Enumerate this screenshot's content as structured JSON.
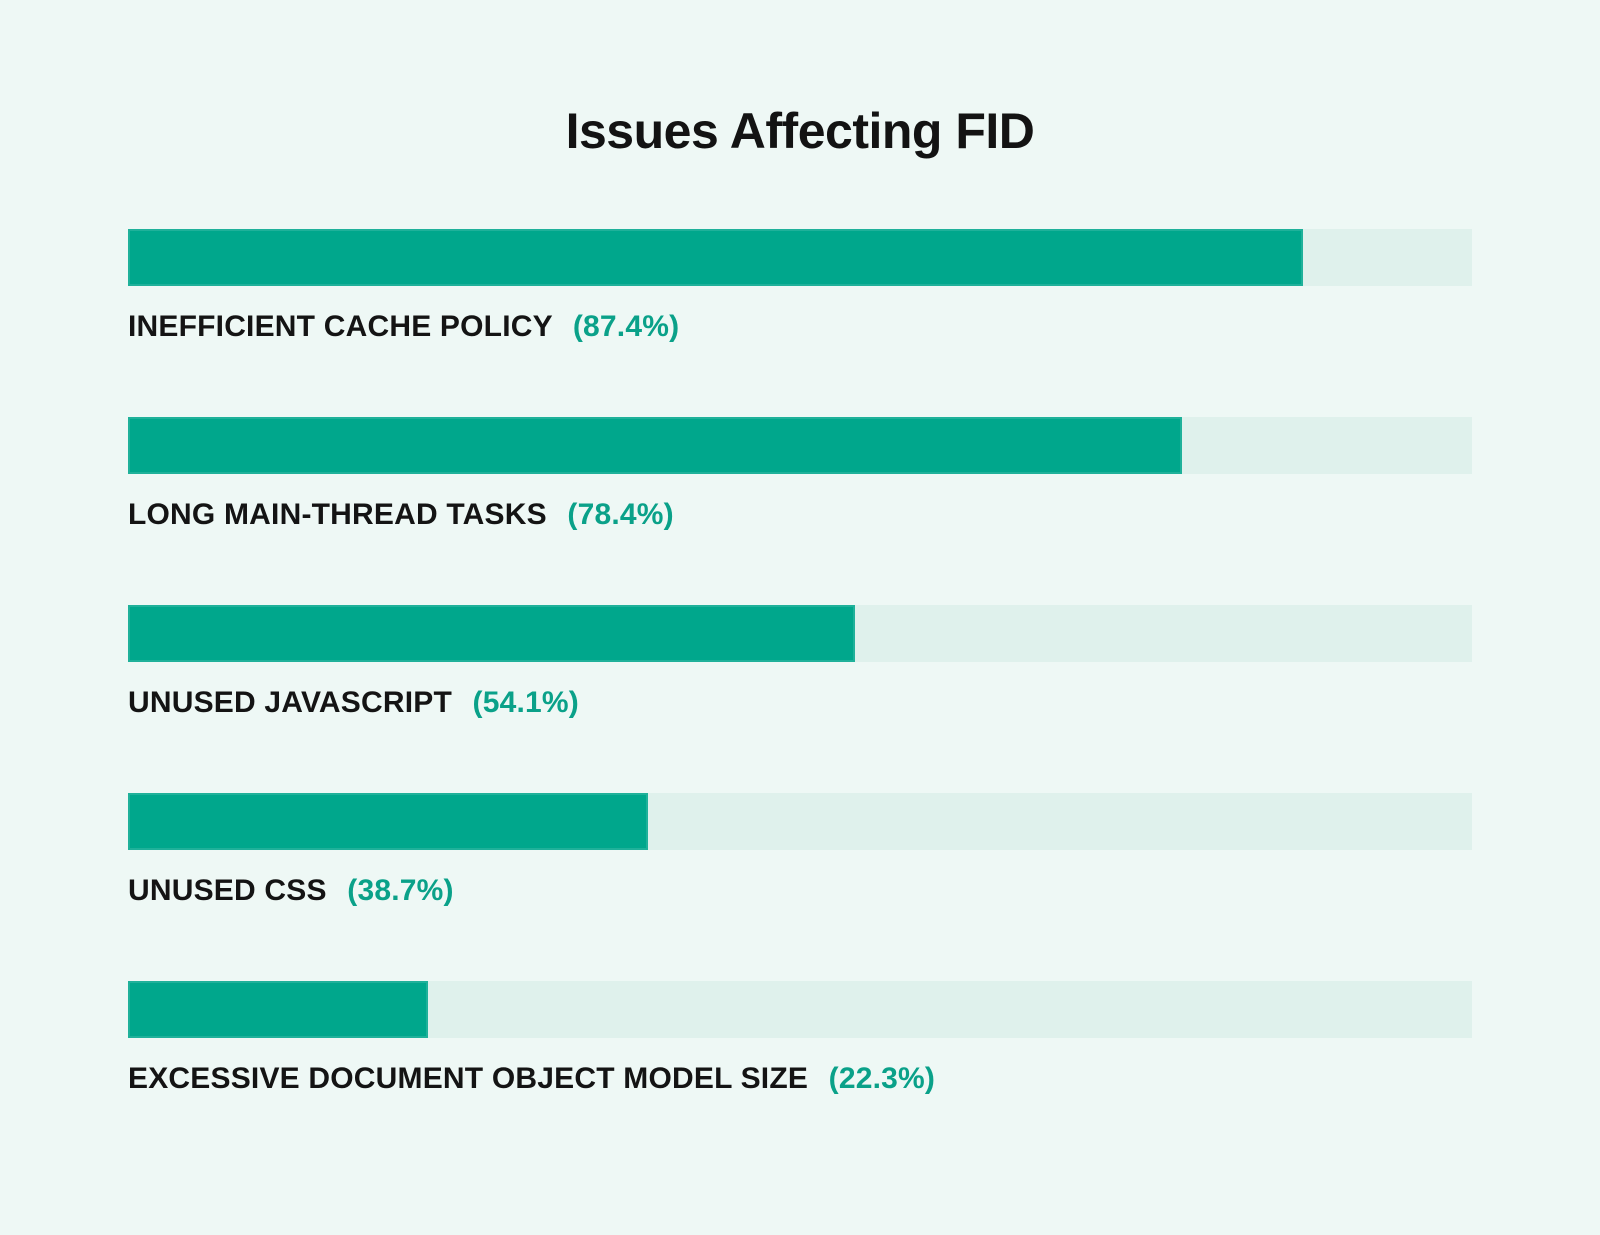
{
  "chart_data": {
    "type": "bar",
    "orientation": "horizontal",
    "title": "Issues Affecting FID",
    "categories": [
      "INEFFICIENT CACHE POLICY",
      "LONG MAIN-THREAD TASKS",
      "UNUSED JAVASCRIPT",
      "UNUSED CSS",
      "EXCESSIVE DOCUMENT OBJECT MODEL SIZE"
    ],
    "values": [
      87.4,
      78.4,
      54.1,
      38.7,
      22.3
    ],
    "value_labels": [
      "(87.4%)",
      "(78.4%)",
      "(54.1%)",
      "(38.7%)",
      "(22.3%)"
    ],
    "unit": "%",
    "xlim": [
      0,
      100
    ],
    "grid": false,
    "legend": "none",
    "colors": {
      "background": "#eef8f5",
      "bar_fill": "#00a78c",
      "bar_track": "#dff1ec",
      "label_text": "#141414",
      "value_text": "#0aa189",
      "title_text": "#131313"
    }
  }
}
